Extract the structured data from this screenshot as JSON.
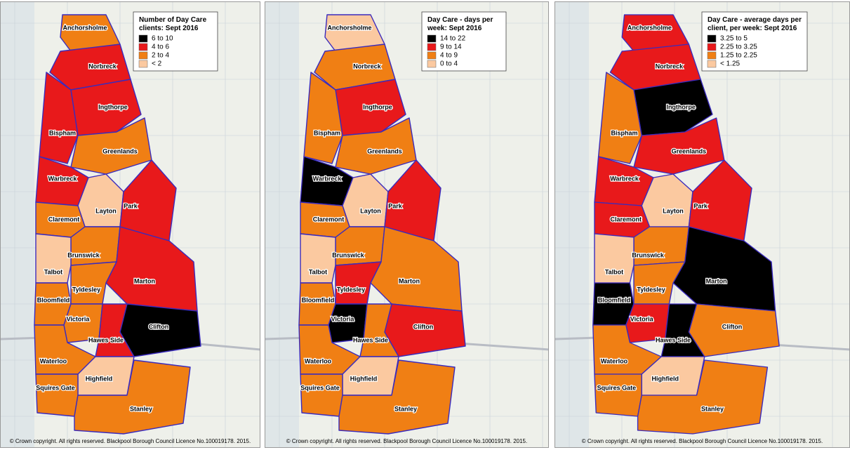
{
  "wards": [
    "Anchorsholme",
    "Norbreck",
    "Ingthorpe",
    "Bispham",
    "Greenlands",
    "Warbreck",
    "Layton",
    "Park",
    "Claremont",
    "Brunswick",
    "Talbot",
    "Marton",
    "Tyldesley",
    "Bloomfield",
    "Victoria",
    "Clifton",
    "Hawes Side",
    "Waterloo",
    "Highfield",
    "Squires Gate",
    "Stanley"
  ],
  "copyright": "© Crown copyright. All rights reserved. Blackpool Borough Council Licence No.100019178. 2015.",
  "maps": [
    {
      "legend": {
        "title_lines": [
          "Number of Day Care",
          "clients: Sept 2016"
        ],
        "items": [
          {
            "label": "6 to 10",
            "color": "#000000"
          },
          {
            "label": "4 to  6",
            "color": "#e8191b"
          },
          {
            "label": "2 to  4",
            "color": "#f07f14"
          },
          {
            "label": "< 2",
            "color": "#fbc9a0"
          }
        ]
      },
      "ward_classes": [
        2,
        1,
        1,
        1,
        2,
        1,
        3,
        1,
        2,
        2,
        3,
        1,
        2,
        2,
        2,
        0,
        1,
        2,
        3,
        2,
        2
      ]
    },
    {
      "legend": {
        "title_lines": [
          "Day Care - days per",
          "week: Sept 2016"
        ],
        "items": [
          {
            "label": "14 to 22",
            "color": "#000000"
          },
          {
            "label": "9 to 14",
            "color": "#e8191b"
          },
          {
            "label": "4 to  9",
            "color": "#f07f14"
          },
          {
            "label": "0 to  4",
            "color": "#fbc9a0"
          }
        ]
      },
      "ward_classes": [
        3,
        2,
        1,
        2,
        2,
        0,
        3,
        1,
        2,
        2,
        3,
        2,
        1,
        2,
        0,
        1,
        2,
        2,
        3,
        2,
        2
      ]
    },
    {
      "legend": {
        "title_lines": [
          "Day Care - average days per",
          "client, per week: Sept 2016"
        ],
        "items": [
          {
            "label": "3.25 to 5",
            "color": "#000000"
          },
          {
            "label": "2.25 to 3.25",
            "color": "#e8191b"
          },
          {
            "label": "1.25 to 2.25",
            "color": "#f07f14"
          },
          {
            "label": "< 1.25",
            "color": "#fbc9a0"
          }
        ]
      },
      "ward_classes": [
        1,
        1,
        0,
        2,
        1,
        1,
        3,
        1,
        1,
        2,
        3,
        0,
        2,
        0,
        1,
        2,
        0,
        2,
        3,
        2,
        2
      ]
    }
  ]
}
